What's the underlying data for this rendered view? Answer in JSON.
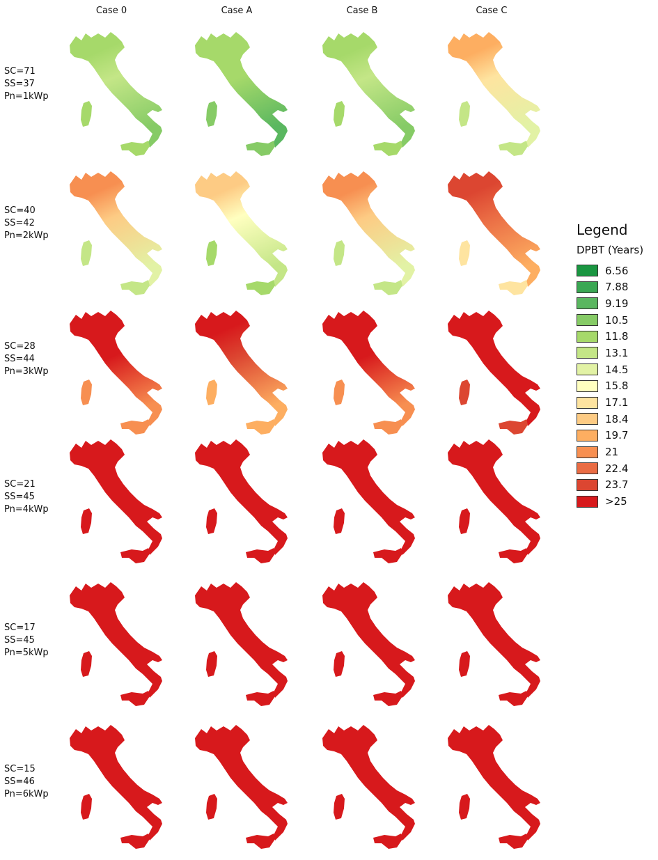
{
  "columns": [
    "Case 0",
    "Case A",
    "Case B",
    "Case C"
  ],
  "rows": [
    {
      "lines": [
        "SC=71",
        "SS=37",
        "Pn=1kWp"
      ],
      "maps": [
        {
          "north": 4,
          "center": 5,
          "south": 3,
          "islands": 4
        },
        {
          "north": 4,
          "center": 4,
          "south": 2,
          "islands": 3
        },
        {
          "north": 4,
          "center": 5,
          "south": 3,
          "islands": 4
        },
        {
          "north": 10,
          "center": 8,
          "south": 6,
          "islands": 5
        }
      ]
    },
    {
      "lines": [
        "SC=40",
        "SS=42",
        "Pn=2kWp"
      ],
      "maps": [
        {
          "north": 11,
          "center": 9,
          "south": 6,
          "islands": 5
        },
        {
          "north": 9,
          "center": 7,
          "south": 5,
          "islands": 4
        },
        {
          "north": 11,
          "center": 9,
          "south": 6,
          "islands": 5
        },
        {
          "north": 13,
          "center": 12,
          "south": 10,
          "islands": 8
        }
      ]
    },
    {
      "lines": [
        "SC=28",
        "SS=44",
        "Pn=3kWp"
      ],
      "maps": [
        {
          "north": 14,
          "center": 14,
          "south": 11,
          "islands": 11
        },
        {
          "north": 14,
          "center": 13,
          "south": 10,
          "islands": 10
        },
        {
          "north": 14,
          "center": 14,
          "south": 11,
          "islands": 11
        },
        {
          "north": 14,
          "center": 14,
          "south": 14,
          "islands": 13
        }
      ]
    },
    {
      "lines": [
        "SC=21",
        "SS=45",
        "Pn=4kWp"
      ],
      "maps": [
        {
          "north": 14,
          "center": 14,
          "south": 14,
          "islands": 14
        },
        {
          "north": 14,
          "center": 14,
          "south": 14,
          "islands": 14
        },
        {
          "north": 14,
          "center": 14,
          "south": 14,
          "islands": 14
        },
        {
          "north": 14,
          "center": 14,
          "south": 14,
          "islands": 14
        }
      ]
    },
    {
      "lines": [
        "SC=17",
        "SS=45",
        "Pn=5kWp"
      ],
      "maps": [
        {
          "north": 14,
          "center": 14,
          "south": 14,
          "islands": 14
        },
        {
          "north": 14,
          "center": 14,
          "south": 14,
          "islands": 14
        },
        {
          "north": 14,
          "center": 14,
          "south": 14,
          "islands": 14
        },
        {
          "north": 14,
          "center": 14,
          "south": 14,
          "islands": 14
        }
      ]
    },
    {
      "lines": [
        "SC=15",
        "SS=46",
        "Pn=6kWp"
      ],
      "maps": [
        {
          "north": 14,
          "center": 14,
          "south": 14,
          "islands": 14
        },
        {
          "north": 14,
          "center": 14,
          "south": 14,
          "islands": 14
        },
        {
          "north": 14,
          "center": 14,
          "south": 14,
          "islands": 14
        },
        {
          "north": 14,
          "center": 14,
          "south": 14,
          "islands": 14
        }
      ]
    }
  ],
  "legend": {
    "title": "Legend",
    "subtitle": "DPBT (Years)",
    "items": [
      {
        "label": "6.56",
        "color": "#1a9641"
      },
      {
        "label": "7.88",
        "color": "#3aa753"
      },
      {
        "label": "9.19",
        "color": "#5ab760"
      },
      {
        "label": "10.5",
        "color": "#86cb66"
      },
      {
        "label": "11.8",
        "color": "#a6d96a"
      },
      {
        "label": "13.1",
        "color": "#c4e687"
      },
      {
        "label": "14.5",
        "color": "#e2f2a5"
      },
      {
        "label": "15.8",
        "color": "#ffffc0"
      },
      {
        "label": "17.1",
        "color": "#fee4a0"
      },
      {
        "label": "18.4",
        "color": "#fdcb84"
      },
      {
        "label": "19.7",
        "color": "#fdae61"
      },
      {
        "label": "21",
        "color": "#f78f51"
      },
      {
        "label": "22.4",
        "color": "#ea6c44"
      },
      {
        "label": "23.7",
        "color": "#dc4631"
      },
      {
        "label": ">25",
        "color": "#d7191c"
      }
    ]
  }
}
